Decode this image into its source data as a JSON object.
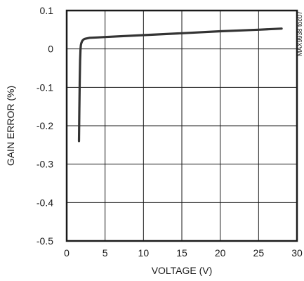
{
  "chart_data": {
    "type": "line",
    "title": "",
    "xlabel": "VOLTAGE (V)",
    "ylabel": "GAIN ERROR (%)",
    "xlim": [
      0,
      30
    ],
    "ylim": [
      -0.5,
      0.1
    ],
    "xticks": [
      0,
      5,
      10,
      15,
      20,
      25,
      30
    ],
    "yticks": [
      0.1,
      0,
      -0.1,
      -0.2,
      -0.3,
      -0.4,
      -0.5
    ],
    "xtick_labels": [
      "0",
      "5",
      "10",
      "15",
      "20",
      "25",
      "30"
    ],
    "ytick_labels": [
      "0.1",
      "0",
      "-0.1",
      "-0.2",
      "-0.3",
      "-0.4",
      "-0.5"
    ],
    "grid": true,
    "legend": "none",
    "annotation": "MAX9938 toc07",
    "line_color": "#333333",
    "series": [
      {
        "x": [
          1.6,
          1.65,
          1.7,
          1.75,
          1.8,
          1.85,
          1.9,
          2.0,
          2.1,
          2.3,
          2.5,
          3.0,
          4.0,
          5.0,
          10.0,
          15.0,
          20.0,
          25.0,
          28.0
        ],
        "y": [
          -0.24,
          -0.16,
          -0.08,
          -0.03,
          0.0,
          0.01,
          0.015,
          0.02,
          0.023,
          0.026,
          0.027,
          0.029,
          0.03,
          0.031,
          0.036,
          0.041,
          0.046,
          0.05,
          0.053
        ]
      }
    ]
  }
}
